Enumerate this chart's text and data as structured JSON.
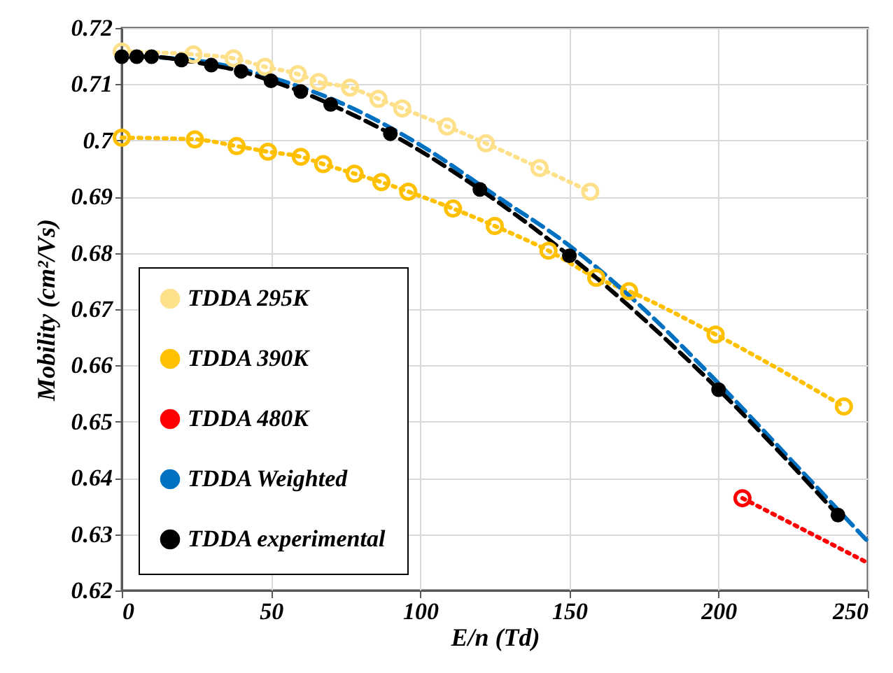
{
  "chart_data": {
    "type": "line",
    "xlabel": "E/n (Td)",
    "ylabel": "Mobility (cm²/Vs)",
    "xlim": [
      0,
      250
    ],
    "xticks": [
      0,
      50,
      100,
      150,
      200,
      250
    ],
    "ylim": [
      0.62,
      0.72
    ],
    "yticks": [
      0.62,
      0.63,
      0.64,
      0.65,
      0.66,
      0.67,
      0.68,
      0.69,
      0.7,
      0.71,
      0.72
    ],
    "grid": true,
    "legend": "bottom left",
    "marker": "circle",
    "series": [
      {
        "name": "TDDA 295K",
        "color": "#ffe08a",
        "line_style": "dotted",
        "x": [
          0,
          24,
          37.5,
          48,
          59,
          66,
          76.5,
          86,
          94,
          109,
          122,
          140,
          157
        ],
        "values": [
          0.7158,
          0.7153,
          0.7146,
          0.7131,
          0.7118,
          0.7104,
          0.7094,
          0.7074,
          0.7057,
          0.7025,
          0.6995,
          0.6951,
          0.6909
        ]
      },
      {
        "name": "TDDA 390K",
        "color": "#ffc000",
        "line_style": "dotted",
        "x": [
          0,
          24.5,
          38.5,
          49,
          60,
          67.5,
          78,
          87,
          96,
          111,
          125,
          143,
          159,
          170,
          199,
          242
        ],
        "values": [
          0.7005,
          0.7002,
          0.699,
          0.698,
          0.6971,
          0.6958,
          0.6941,
          0.6926,
          0.6909,
          0.6879,
          0.6848,
          0.6804,
          0.6756,
          0.6732,
          0.6655,
          0.6527
        ]
      },
      {
        "name": "TDDA 480K",
        "color": "#ff0000",
        "line_style": "dotted",
        "x": [
          208
        ],
        "values": [
          0.6364
        ]
      },
      {
        "name": "TDDA Weighted",
        "color": "#0070c0",
        "line_style": "dashed",
        "marker": "none",
        "x": [
          0,
          25,
          50,
          75,
          100,
          125,
          150,
          175,
          200,
          225,
          250
        ],
        "values": [
          0.715,
          0.7142,
          0.7112,
          0.7063,
          0.6992,
          0.6903,
          0.6813,
          0.67,
          0.6568,
          0.6428,
          0.6287
        ]
      },
      {
        "name": "TDDA experimental",
        "color": "#000000",
        "line_style": "dashed",
        "x": [
          0,
          5,
          10,
          20,
          30,
          40,
          50,
          60,
          70,
          90,
          120,
          150,
          200,
          240
        ],
        "values": [
          0.7149,
          0.7149,
          0.7149,
          0.7143,
          0.7134,
          0.7123,
          0.7106,
          0.7087,
          0.7064,
          0.7012,
          0.6913,
          0.6795,
          0.6557,
          0.6334
        ]
      },
      {
        "color": "#ff0000",
        "line_style": "dotted",
        "marker": "none",
        "x": [
          208,
          250
        ],
        "values": [
          0.6364,
          0.6249
        ]
      }
    ]
  }
}
